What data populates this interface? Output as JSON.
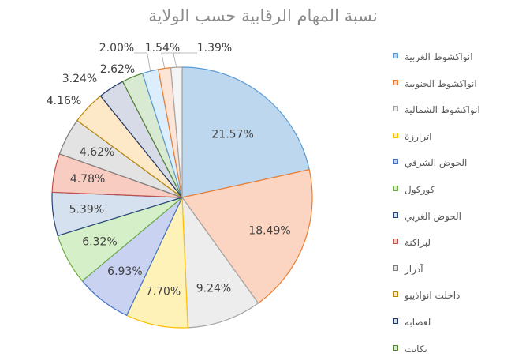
{
  "chart_data": {
    "type": "pie",
    "title": "نسبة المهام الرقابية حسب الولاية",
    "legend_position": "right",
    "categories": [
      "انواكشوط الغربية",
      "انواكشوط الجنوبية",
      "انواكشوط الشمالية",
      "اترارزة",
      "الحوض الشرقي",
      "كوركول",
      "الحوض الغربي",
      "لبراكنة",
      "آدرار",
      "داخلت انواذيبو",
      "لعصابة",
      "تكانت",
      "",
      "",
      ""
    ],
    "values": [
      21.57,
      18.49,
      9.24,
      7.7,
      6.93,
      6.32,
      5.39,
      4.78,
      4.62,
      4.16,
      3.24,
      2.62,
      2.0,
      1.54,
      1.39
    ],
    "labels": [
      "21.57%",
      "18.49%",
      "9.24%",
      "7.70%",
      "6.93%",
      "6.32%",
      "5.39%",
      "4.78%",
      "4.62%",
      "4.16%",
      "3.24%",
      "2.62%",
      "2.00%",
      "1.54%",
      "1.39%"
    ],
    "fills": [
      "#bdd7ee",
      "#fbd5c1",
      "#ededed",
      "#fff2b8",
      "#c9d3f1",
      "#d5f0c8",
      "#d6e1f0",
      "#f8ccc0",
      "#e3e3e3",
      "#fde9c8",
      "#d7dbe8",
      "#d9ead3",
      "#dceefb",
      "#fce4d6",
      "#f4f4f4"
    ],
    "strokes": [
      "#5b9bd5",
      "#ed7d31",
      "#a5a5a5",
      "#ffc000",
      "#4472c4",
      "#70ad47",
      "#264478",
      "#c0504d",
      "#7f7f7f",
      "#b8860b",
      "#203864",
      "#548235",
      "#5b9bd5",
      "#ed7d31",
      "#a5a5a5"
    ]
  }
}
